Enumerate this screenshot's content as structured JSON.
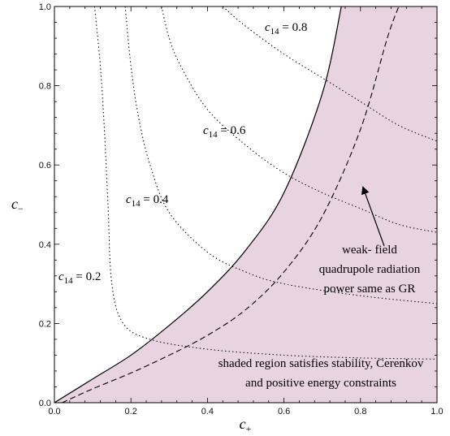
{
  "chart_data": {
    "type": "line",
    "title": "",
    "xlabel": "c",
    "xlabel_sub": "+",
    "ylabel": "c",
    "ylabel_sub": "−",
    "xlim": [
      0,
      1
    ],
    "ylim": [
      0,
      1
    ],
    "x_ticks": [
      "0.0",
      "0.2",
      "0.4",
      "0.6",
      "0.8",
      "1.0"
    ],
    "y_ticks": [
      "0.0",
      "0.2",
      "0.4",
      "0.6",
      "0.8",
      "1.0"
    ],
    "grid": false,
    "colors": {
      "shade": "#e7d4e0",
      "line": "#000000"
    },
    "boundary": {
      "style": "solid",
      "x": [
        0,
        0.1,
        0.2,
        0.3,
        0.4,
        0.5,
        0.6,
        0.7,
        0.75
      ],
      "y": [
        0,
        0.06,
        0.12,
        0.195,
        0.28,
        0.385,
        0.53,
        0.78,
        1.0
      ]
    },
    "gr_power_curve": {
      "style": "dashed",
      "x": [
        0.02,
        0.1,
        0.2,
        0.3,
        0.4,
        0.5,
        0.6,
        0.7,
        0.8,
        0.87,
        0.9
      ],
      "y": [
        0,
        0.035,
        0.075,
        0.12,
        0.17,
        0.235,
        0.33,
        0.47,
        0.69,
        0.92,
        1.0
      ]
    },
    "contours": [
      {
        "label_base": "c",
        "label_sub": "14",
        "label_eq": " = 0.2",
        "x": [
          0.105,
          0.12,
          0.13,
          0.14,
          0.15,
          0.18,
          0.25,
          0.4,
          0.6,
          0.8,
          1.0
        ],
        "y": [
          1.0,
          0.85,
          0.7,
          0.5,
          0.3,
          0.2,
          0.16,
          0.135,
          0.12,
          0.113,
          0.11
        ]
      },
      {
        "label_base": "c",
        "label_sub": "14",
        "label_eq": " = 0.4",
        "x": [
          0.185,
          0.2,
          0.22,
          0.25,
          0.3,
          0.4,
          0.5,
          0.6,
          0.8,
          1.0
        ],
        "y": [
          1.0,
          0.85,
          0.72,
          0.6,
          0.48,
          0.38,
          0.33,
          0.3,
          0.27,
          0.25
        ]
      },
      {
        "label_base": "c",
        "label_sub": "14",
        "label_eq": " = 0.6",
        "x": [
          0.28,
          0.3,
          0.33,
          0.4,
          0.5,
          0.6,
          0.7,
          0.8,
          0.9,
          1.0
        ],
        "y": [
          1.0,
          0.92,
          0.85,
          0.74,
          0.65,
          0.58,
          0.53,
          0.49,
          0.45,
          0.43
        ]
      },
      {
        "label_base": "c",
        "label_sub": "14",
        "label_eq": " = 0.8",
        "x": [
          0.44,
          0.5,
          0.6,
          0.7,
          0.8,
          0.9,
          1.0
        ],
        "y": [
          1.0,
          0.95,
          0.88,
          0.82,
          0.76,
          0.7,
          0.66
        ]
      }
    ],
    "annotations": {
      "gr_line1": "weak- field",
      "gr_line2": "quadrupole radiation",
      "gr_line3": "power same as GR",
      "shade_line1": "shaded region satisfies stability, Cerenkov",
      "shade_line2": "and positive energy constraints"
    }
  }
}
